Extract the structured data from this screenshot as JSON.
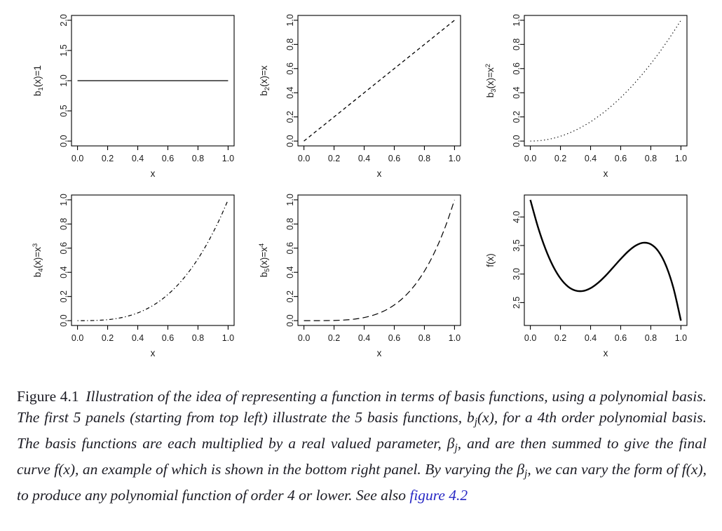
{
  "page": {
    "background": "#ffffff",
    "axis_color": "#000000",
    "tick_text_color": "#1a1a1a"
  },
  "chart_data": [
    {
      "id": "b1",
      "type": "line",
      "title": "",
      "xlabel": "x",
      "ylabel": "b1(x)=1",
      "ylabel_parts": [
        {
          "t": "b"
        },
        {
          "t": "1",
          "pos": "sub"
        },
        {
          "t": "(x)=1"
        }
      ],
      "xlim": [
        0,
        1
      ],
      "ylim": [
        0,
        2
      ],
      "xticks": [
        0,
        0.2,
        0.4,
        0.6,
        0.8,
        1
      ],
      "xtick_labels": [
        "0.0",
        "0.2",
        "0.4",
        "0.6",
        "0.8",
        "1.0"
      ],
      "yticks": [
        0,
        0.5,
        1,
        1.5,
        2
      ],
      "ytick_labels": [
        "0.0",
        "0.5",
        "1.0",
        "1.5",
        "2.0"
      ],
      "grid": false,
      "box": true,
      "linestyle": "solid",
      "linewidth": 1.3,
      "x": [
        0,
        0.05,
        0.1,
        0.15,
        0.2,
        0.25,
        0.3,
        0.35,
        0.4,
        0.45,
        0.5,
        0.55,
        0.6,
        0.65,
        0.7,
        0.75,
        0.8,
        0.85,
        0.9,
        0.95,
        1
      ],
      "y": [
        1,
        1,
        1,
        1,
        1,
        1,
        1,
        1,
        1,
        1,
        1,
        1,
        1,
        1,
        1,
        1,
        1,
        1,
        1,
        1,
        1
      ]
    },
    {
      "id": "b2",
      "type": "line",
      "title": "",
      "xlabel": "x",
      "ylabel": "b2(x)=x",
      "ylabel_parts": [
        {
          "t": "b"
        },
        {
          "t": "2",
          "pos": "sub"
        },
        {
          "t": "(x)=x"
        }
      ],
      "xlim": [
        0,
        1
      ],
      "ylim": [
        0,
        1
      ],
      "xticks": [
        0,
        0.2,
        0.4,
        0.6,
        0.8,
        1
      ],
      "xtick_labels": [
        "0.0",
        "0.2",
        "0.4",
        "0.6",
        "0.8",
        "1.0"
      ],
      "yticks": [
        0,
        0.2,
        0.4,
        0.6,
        0.8,
        1
      ],
      "ytick_labels": [
        "0.0",
        "0.2",
        "0.4",
        "0.6",
        "0.8",
        "1.0"
      ],
      "grid": false,
      "box": true,
      "linestyle": "dashed",
      "linewidth": 1.3,
      "x": [
        0,
        0.05,
        0.1,
        0.15,
        0.2,
        0.25,
        0.3,
        0.35,
        0.4,
        0.45,
        0.5,
        0.55,
        0.6,
        0.65,
        0.7,
        0.75,
        0.8,
        0.85,
        0.9,
        0.95,
        1
      ],
      "y": [
        0,
        0.05,
        0.1,
        0.15,
        0.2,
        0.25,
        0.3,
        0.35,
        0.4,
        0.45,
        0.5,
        0.55,
        0.6,
        0.65,
        0.7,
        0.75,
        0.8,
        0.85,
        0.9,
        0.95,
        1
      ]
    },
    {
      "id": "b3",
      "type": "line",
      "title": "",
      "xlabel": "x",
      "ylabel": "b3(x)=x^2",
      "ylabel_parts": [
        {
          "t": "b"
        },
        {
          "t": "3",
          "pos": "sub"
        },
        {
          "t": "(x)=x"
        },
        {
          "t": "2",
          "pos": "sup"
        }
      ],
      "xlim": [
        0,
        1
      ],
      "ylim": [
        0,
        1
      ],
      "xticks": [
        0,
        0.2,
        0.4,
        0.6,
        0.8,
        1
      ],
      "xtick_labels": [
        "0.0",
        "0.2",
        "0.4",
        "0.6",
        "0.8",
        "1.0"
      ],
      "yticks": [
        0,
        0.2,
        0.4,
        0.6,
        0.8,
        1
      ],
      "ytick_labels": [
        "0.0",
        "0.2",
        "0.4",
        "0.6",
        "0.8",
        "1.0"
      ],
      "grid": false,
      "box": true,
      "linestyle": "dotted",
      "linewidth": 1.2,
      "x": [
        0,
        0.05,
        0.1,
        0.15,
        0.2,
        0.25,
        0.3,
        0.35,
        0.4,
        0.45,
        0.5,
        0.55,
        0.6,
        0.65,
        0.7,
        0.75,
        0.8,
        0.85,
        0.9,
        0.95,
        1
      ],
      "y": [
        0,
        0.0025,
        0.01,
        0.0225,
        0.04,
        0.0625,
        0.09,
        0.1225,
        0.16,
        0.2025,
        0.25,
        0.3025,
        0.36,
        0.4225,
        0.49,
        0.5625,
        0.64,
        0.7225,
        0.81,
        0.9025,
        1
      ]
    },
    {
      "id": "b4",
      "type": "line",
      "title": "",
      "xlabel": "x",
      "ylabel": "b4(x)=x^3",
      "ylabel_parts": [
        {
          "t": "b"
        },
        {
          "t": "4",
          "pos": "sub"
        },
        {
          "t": "(x)=x"
        },
        {
          "t": "3",
          "pos": "sup"
        }
      ],
      "xlim": [
        0,
        1
      ],
      "ylim": [
        0,
        1
      ],
      "xticks": [
        0,
        0.2,
        0.4,
        0.6,
        0.8,
        1
      ],
      "xtick_labels": [
        "0.0",
        "0.2",
        "0.4",
        "0.6",
        "0.8",
        "1.0"
      ],
      "yticks": [
        0,
        0.2,
        0.4,
        0.6,
        0.8,
        1
      ],
      "ytick_labels": [
        "0.0",
        "0.2",
        "0.4",
        "0.6",
        "0.8",
        "1.0"
      ],
      "grid": false,
      "box": true,
      "linestyle": "dotdash",
      "linewidth": 1.2,
      "x": [
        0,
        0.05,
        0.1,
        0.15,
        0.2,
        0.25,
        0.3,
        0.35,
        0.4,
        0.45,
        0.5,
        0.55,
        0.6,
        0.65,
        0.7,
        0.75,
        0.8,
        0.85,
        0.9,
        0.95,
        1
      ],
      "y": [
        0,
        0.0001,
        0.001,
        0.0034,
        0.008,
        0.0156,
        0.027,
        0.0429,
        0.064,
        0.0911,
        0.125,
        0.1664,
        0.216,
        0.2746,
        0.343,
        0.4219,
        0.512,
        0.6141,
        0.729,
        0.8574,
        1
      ]
    },
    {
      "id": "b5",
      "type": "line",
      "title": "",
      "xlabel": "x",
      "ylabel": "b5(x)=x^4",
      "ylabel_parts": [
        {
          "t": "b"
        },
        {
          "t": "5",
          "pos": "sub"
        },
        {
          "t": "(x)=x"
        },
        {
          "t": "4",
          "pos": "sup"
        }
      ],
      "xlim": [
        0,
        1
      ],
      "ylim": [
        0,
        1
      ],
      "xticks": [
        0,
        0.2,
        0.4,
        0.6,
        0.8,
        1
      ],
      "xtick_labels": [
        "0.0",
        "0.2",
        "0.4",
        "0.6",
        "0.8",
        "1.0"
      ],
      "yticks": [
        0,
        0.2,
        0.4,
        0.6,
        0.8,
        1
      ],
      "ytick_labels": [
        "0.0",
        "0.2",
        "0.4",
        "0.6",
        "0.8",
        "1.0"
      ],
      "grid": false,
      "box": true,
      "linestyle": "longdash",
      "linewidth": 1.2,
      "x": [
        0,
        0.05,
        0.1,
        0.15,
        0.2,
        0.25,
        0.3,
        0.35,
        0.4,
        0.45,
        0.5,
        0.55,
        0.6,
        0.65,
        0.7,
        0.75,
        0.8,
        0.85,
        0.9,
        0.95,
        1
      ],
      "y": [
        0,
        0,
        0.0001,
        0.0005,
        0.0016,
        0.0039,
        0.0081,
        0.015,
        0.0256,
        0.041,
        0.0625,
        0.0915,
        0.1296,
        0.1785,
        0.2401,
        0.3164,
        0.4096,
        0.522,
        0.6561,
        0.8145,
        1
      ]
    },
    {
      "id": "f",
      "type": "line",
      "title": "",
      "xlabel": "x",
      "ylabel": "f(x)",
      "ylabel_parts": [
        {
          "t": "f(x)"
        }
      ],
      "xlim": [
        0,
        1
      ],
      "ylim": [
        2.184,
        4.3
      ],
      "xticks": [
        0,
        0.2,
        0.4,
        0.6,
        0.8,
        1
      ],
      "xtick_labels": [
        "0.0",
        "0.2",
        "0.4",
        "0.6",
        "0.8",
        "1.0"
      ],
      "yticks": [
        2.5,
        3,
        3.5,
        4
      ],
      "ytick_labels": [
        "2.5",
        "3.0",
        "3.5",
        "4.0"
      ],
      "grid": false,
      "box": true,
      "linestyle": "solid",
      "linewidth": 2.4,
      "x": [
        0,
        0.05,
        0.1,
        0.15,
        0.2,
        0.25,
        0.3,
        0.35,
        0.4,
        0.45,
        0.5,
        0.55,
        0.6,
        0.65,
        0.7,
        0.75,
        0.8,
        0.85,
        0.9,
        0.95,
        1
      ],
      "y": [
        4.3,
        3.829,
        3.444,
        3.143,
        2.923,
        2.781,
        2.711,
        2.704,
        2.753,
        2.847,
        2.972,
        3.117,
        3.264,
        3.398,
        3.499,
        3.548,
        3.522,
        3.399,
        3.153,
        2.757,
        2.184
      ]
    }
  ],
  "caption": {
    "link_color": "#2727c4",
    "segments": [
      {
        "kind": "label",
        "text": "Figure 4.1"
      },
      {
        "kind": "italic",
        "text": "Illustration of the idea of representing a function in terms of basis functions, using a polynomial basis. The first 5 panels (starting from top left) illustrate the 5 basis functions, b"
      },
      {
        "kind": "sub",
        "text": "j"
      },
      {
        "kind": "italic",
        "text": "(x), for a 4th order polynomial basis. The basis functions are each multiplied by a real valued parameter, β"
      },
      {
        "kind": "sub",
        "text": "j"
      },
      {
        "kind": "italic",
        "text": ", and are then summed to give the final curve f(x), an example of which is shown in the bottom right panel. By varying the β"
      },
      {
        "kind": "sub",
        "text": "j"
      },
      {
        "kind": "italic",
        "text": ", we can vary the form of f(x), to produce any polynomial function of order 4 or lower. See also "
      },
      {
        "kind": "link",
        "text": "figure 4.2"
      }
    ]
  }
}
